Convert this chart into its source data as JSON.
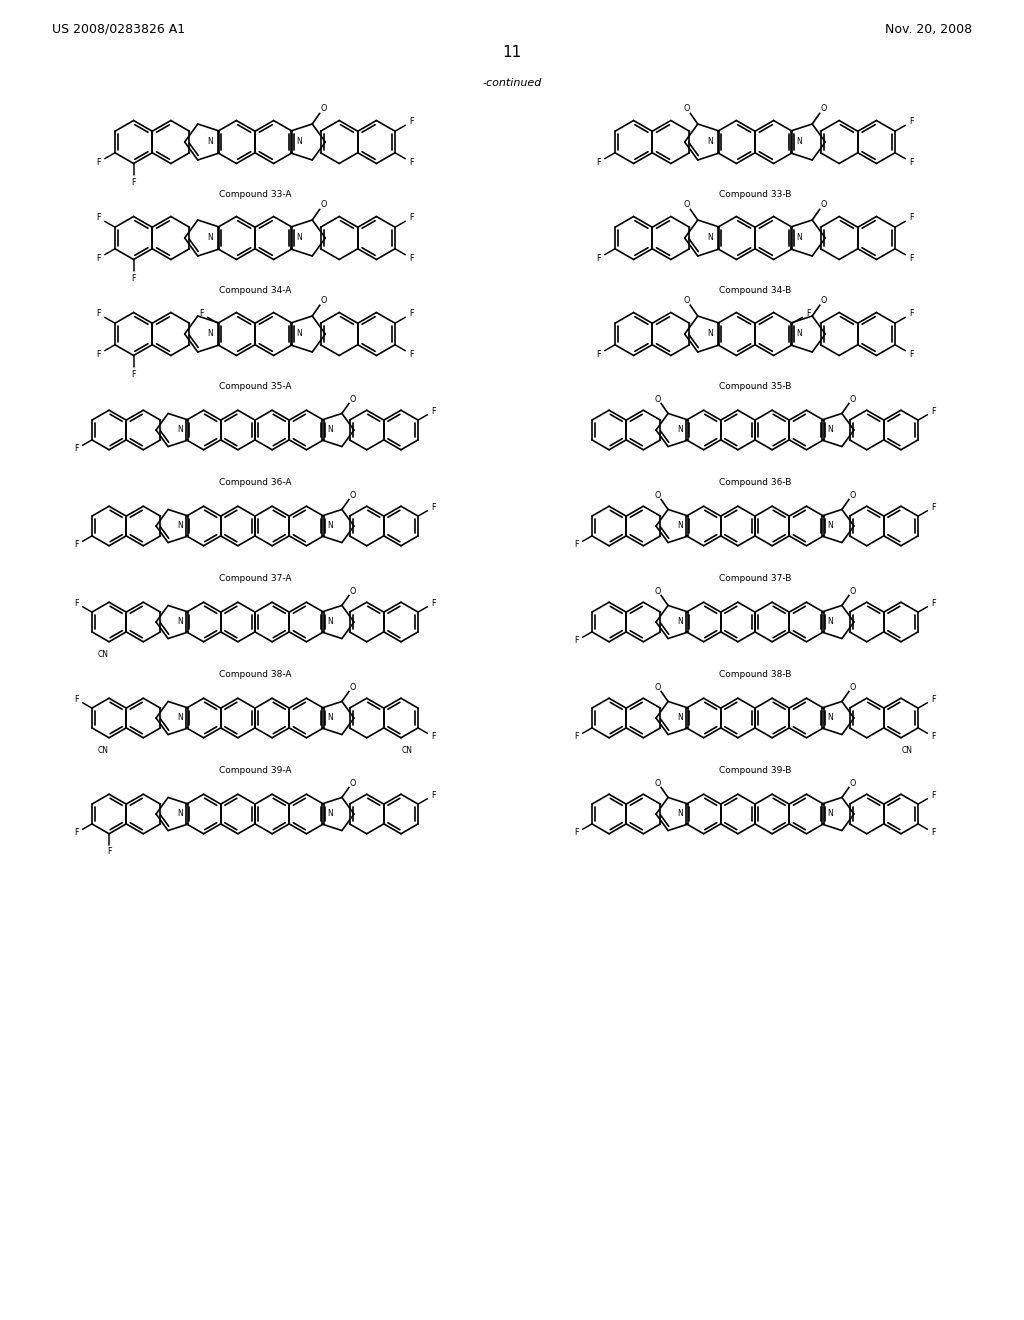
{
  "bg_color": "#ffffff",
  "header_left": "US 2008/0283826 A1",
  "header_right": "Nov. 20, 2008",
  "page_number": "11",
  "continued_text": "-continued",
  "row_labels": [
    [
      "Compound 33-A",
      "Compound 33-B"
    ],
    [
      "Compound 34-A",
      "Compound 34-B"
    ],
    [
      "Compound 35-A",
      "Compound 35-B"
    ],
    [
      "Compound 36-A",
      "Compound 36-B"
    ],
    [
      "Compound 37-A",
      "Compound 37-B"
    ],
    [
      "Compound 38-A",
      "Compound 38-B"
    ],
    [
      "Compound 39-A",
      "Compound 39-B"
    ],
    [
      "",
      ""
    ]
  ]
}
